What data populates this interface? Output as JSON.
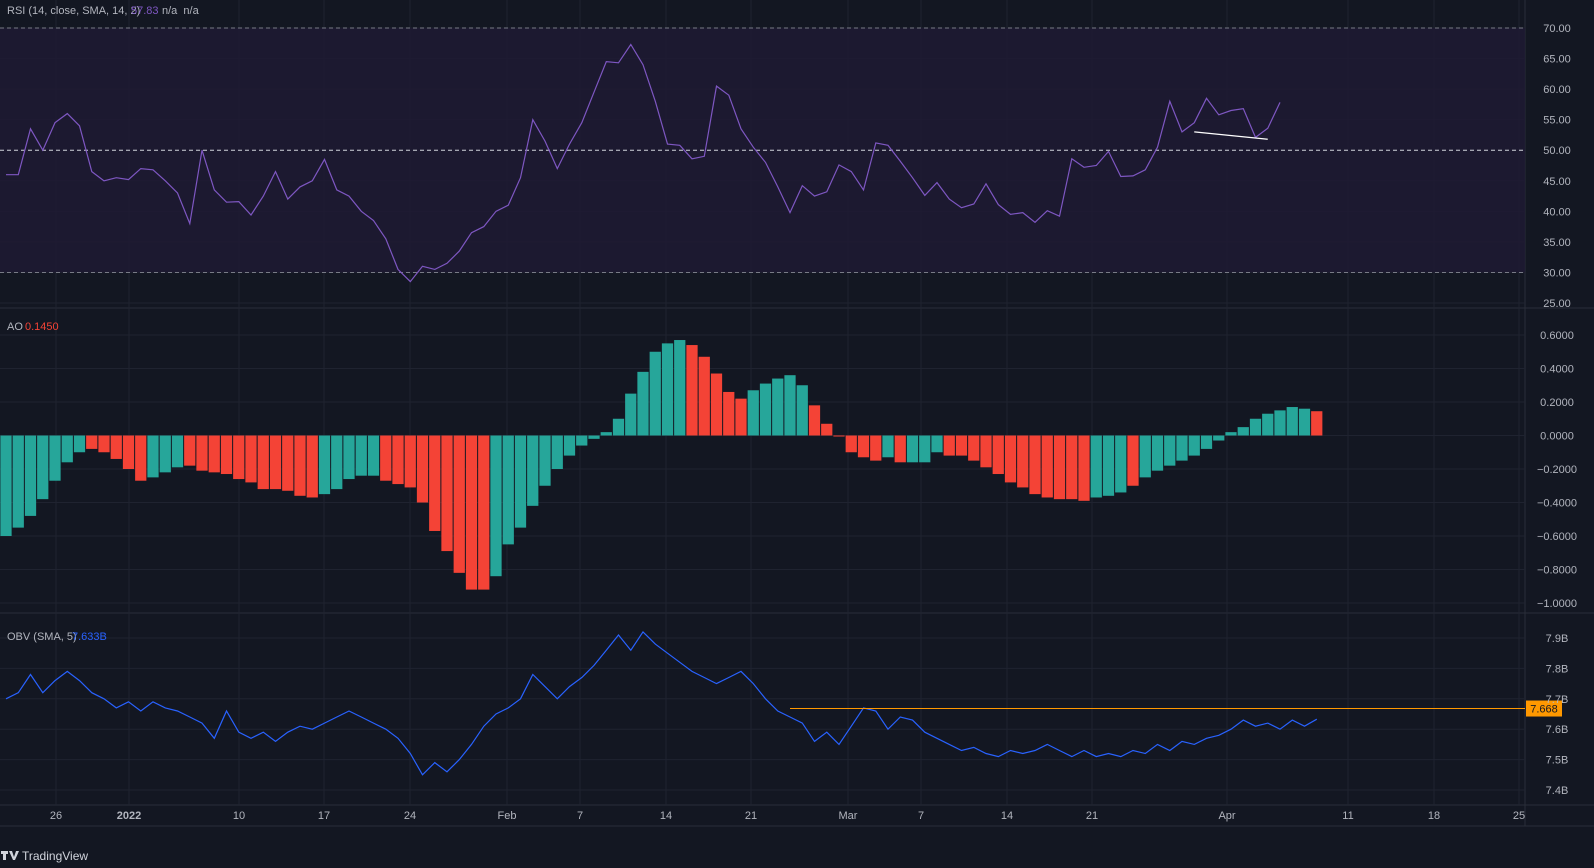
{
  "footer": {
    "brand": "TradingView",
    "logo_icon": "tradingview-logo-icon"
  },
  "colors": {
    "background": "#131722",
    "rsi_band": "#1e1a33",
    "rsi_line": "#7e57c2",
    "ao_up": "#26a69a",
    "ao_down": "#f44336",
    "obv_line": "#2962ff",
    "obv_level": "#ff9800",
    "grid": "#1f2330",
    "text": "#b2b5be"
  },
  "x_axis": {
    "labels": [
      "26",
      "2022",
      "10",
      "17",
      "24",
      "Feb",
      "7",
      "14",
      "21",
      "Mar",
      "7",
      "14",
      "21",
      "Apr",
      "11",
      "18",
      "25"
    ]
  },
  "chart_data": [
    {
      "type": "line",
      "pane": "rsi",
      "legend": {
        "name": "RSI (14, close, SMA, 14, 2)",
        "value": "57.83",
        "extra": "n/a  n/a"
      },
      "ylim": [
        25,
        70
      ],
      "y_ticks": [
        "70.00",
        "65.00",
        "60.00",
        "55.00",
        "50.00",
        "45.00",
        "40.00",
        "35.00",
        "30.00",
        "25.00"
      ],
      "band": [
        30,
        70
      ],
      "dashed_levels": [
        70,
        50,
        30
      ],
      "values": [
        46,
        46,
        53.5,
        50,
        54.5,
        56,
        54,
        46.5,
        45,
        45.5,
        45.2,
        47,
        46.8,
        45,
        43,
        38,
        50,
        43.5,
        41.5,
        41.6,
        39.4,
        42.5,
        46.5,
        42,
        44,
        45,
        48.5,
        43.5,
        42.5,
        40,
        38.5,
        35.5,
        30.5,
        28.5,
        31,
        30.5,
        31.5,
        33.5,
        36.5,
        37.5,
        40,
        41,
        45.5,
        55,
        51.5,
        47,
        51,
        54.5,
        59.5,
        64.5,
        64.3,
        67.3,
        64,
        58,
        51,
        50.8,
        48.6,
        49,
        60.5,
        59,
        53.5,
        50.5,
        48,
        44,
        39.8,
        44.2,
        42.5,
        43.2,
        47.6,
        46.5,
        43.5,
        51.2,
        50.8,
        48.2,
        45.5,
        42.6,
        44.7,
        42,
        40.6,
        41.2,
        44.5,
        41.1,
        39.5,
        39.8,
        38.2,
        40.1,
        39.2,
        48.6,
        47.2,
        47.5,
        49.8,
        45.7,
        45.8,
        46.8,
        50.5,
        58,
        53,
        54.5,
        58.5,
        55.8,
        56.5,
        56.8,
        52.1,
        53.6,
        57.83
      ],
      "divergence_line": {
        "from_index": 97,
        "to_index": 103,
        "values": [
          53,
          51.8
        ]
      }
    },
    {
      "type": "bar",
      "pane": "ao",
      "legend": {
        "name": "AO",
        "value": "0.1450"
      },
      "ylim": [
        -1.0,
        0.6
      ],
      "y_ticks": [
        "0.6000",
        "0.4000",
        "0.2000",
        "0.0000",
        "−0.2000",
        "−0.4000",
        "−0.6000",
        "−0.8000",
        "−1.0000"
      ],
      "values": [
        -0.6,
        -0.55,
        -0.48,
        -0.38,
        -0.27,
        -0.16,
        -0.1,
        -0.08,
        -0.1,
        -0.14,
        -0.2,
        -0.27,
        -0.25,
        -0.22,
        -0.19,
        -0.18,
        -0.21,
        -0.22,
        -0.23,
        -0.26,
        -0.28,
        -0.32,
        -0.32,
        -0.33,
        -0.36,
        -0.37,
        -0.35,
        -0.32,
        -0.26,
        -0.24,
        -0.24,
        -0.27,
        -0.29,
        -0.31,
        -0.4,
        -0.57,
        -0.69,
        -0.82,
        -0.92,
        -0.92,
        -0.84,
        -0.65,
        -0.55,
        -0.42,
        -0.3,
        -0.2,
        -0.12,
        -0.06,
        -0.02,
        0.02,
        0.1,
        0.25,
        0.38,
        0.5,
        0.55,
        0.57,
        0.54,
        0.47,
        0.37,
        0.26,
        0.22,
        0.27,
        0.31,
        0.34,
        0.36,
        0.3,
        0.18,
        0.07,
        0.0,
        -0.1,
        -0.13,
        -0.15,
        -0.13,
        -0.16,
        -0.16,
        -0.16,
        -0.1,
        -0.12,
        -0.12,
        -0.15,
        -0.19,
        -0.23,
        -0.28,
        -0.31,
        -0.35,
        -0.37,
        -0.38,
        -0.38,
        -0.39,
        -0.37,
        -0.36,
        -0.34,
        -0.3,
        -0.25,
        -0.21,
        -0.18,
        -0.15,
        -0.12,
        -0.08,
        -0.03,
        0.02,
        0.05,
        0.1,
        0.13,
        0.15,
        0.17,
        0.16,
        0.145
      ],
      "colors_by_bar": [
        "up",
        "up",
        "up",
        "up",
        "up",
        "up",
        "up",
        "down",
        "down",
        "down",
        "down",
        "down",
        "up",
        "up",
        "up",
        "down",
        "down",
        "down",
        "down",
        "down",
        "down",
        "down",
        "down",
        "down",
        "down",
        "down",
        "up",
        "up",
        "up",
        "up",
        "up",
        "down",
        "down",
        "down",
        "down",
        "down",
        "down",
        "down",
        "down",
        "down",
        "up",
        "up",
        "up",
        "up",
        "up",
        "up",
        "up",
        "up",
        "up",
        "up",
        "up",
        "up",
        "up",
        "up",
        "up",
        "up",
        "down",
        "down",
        "down",
        "down",
        "down",
        "up",
        "up",
        "up",
        "up",
        "up",
        "down",
        "down",
        "down",
        "down",
        "down",
        "down",
        "up",
        "down",
        "up",
        "up",
        "up",
        "down",
        "down",
        "down",
        "down",
        "down",
        "down",
        "down",
        "down",
        "down",
        "down",
        "down",
        "down",
        "up",
        "up",
        "up",
        "down",
        "up",
        "up",
        "up",
        "up",
        "up",
        "up",
        "up",
        "up",
        "up",
        "up",
        "up",
        "up",
        "up",
        "up",
        "down",
        "down",
        "down"
      ]
    },
    {
      "type": "line",
      "pane": "obv",
      "legend": {
        "name": "OBV (SMA, 5)",
        "value": "7.633B"
      },
      "ylim": [
        7.4,
        7.9
      ],
      "y_ticks": [
        "7.9B",
        "7.8B",
        "7.7B",
        "7.6B",
        "7.5B",
        "7.4B"
      ],
      "values": [
        7.7,
        7.72,
        7.78,
        7.72,
        7.76,
        7.79,
        7.76,
        7.72,
        7.7,
        7.67,
        7.69,
        7.66,
        7.69,
        7.67,
        7.66,
        7.64,
        7.62,
        7.57,
        7.66,
        7.59,
        7.57,
        7.59,
        7.56,
        7.59,
        7.61,
        7.6,
        7.62,
        7.64,
        7.66,
        7.64,
        7.62,
        7.6,
        7.57,
        7.52,
        7.45,
        7.49,
        7.46,
        7.5,
        7.55,
        7.61,
        7.65,
        7.67,
        7.7,
        7.78,
        7.74,
        7.7,
        7.74,
        7.77,
        7.81,
        7.86,
        7.91,
        7.86,
        7.92,
        7.88,
        7.85,
        7.82,
        7.79,
        7.77,
        7.75,
        7.77,
        7.79,
        7.75,
        7.7,
        7.66,
        7.64,
        7.62,
        7.56,
        7.59,
        7.55,
        7.61,
        7.67,
        7.66,
        7.6,
        7.64,
        7.63,
        7.59,
        7.57,
        7.55,
        7.53,
        7.54,
        7.52,
        7.51,
        7.53,
        7.52,
        7.53,
        7.55,
        7.53,
        7.51,
        7.53,
        7.51,
        7.52,
        7.51,
        7.53,
        7.52,
        7.55,
        7.53,
        7.56,
        7.55,
        7.57,
        7.58,
        7.6,
        7.63,
        7.61,
        7.62,
        7.6,
        7.63,
        7.61,
        7.633
      ],
      "level_line": {
        "value": 7.668,
        "label": "7.668"
      }
    }
  ]
}
